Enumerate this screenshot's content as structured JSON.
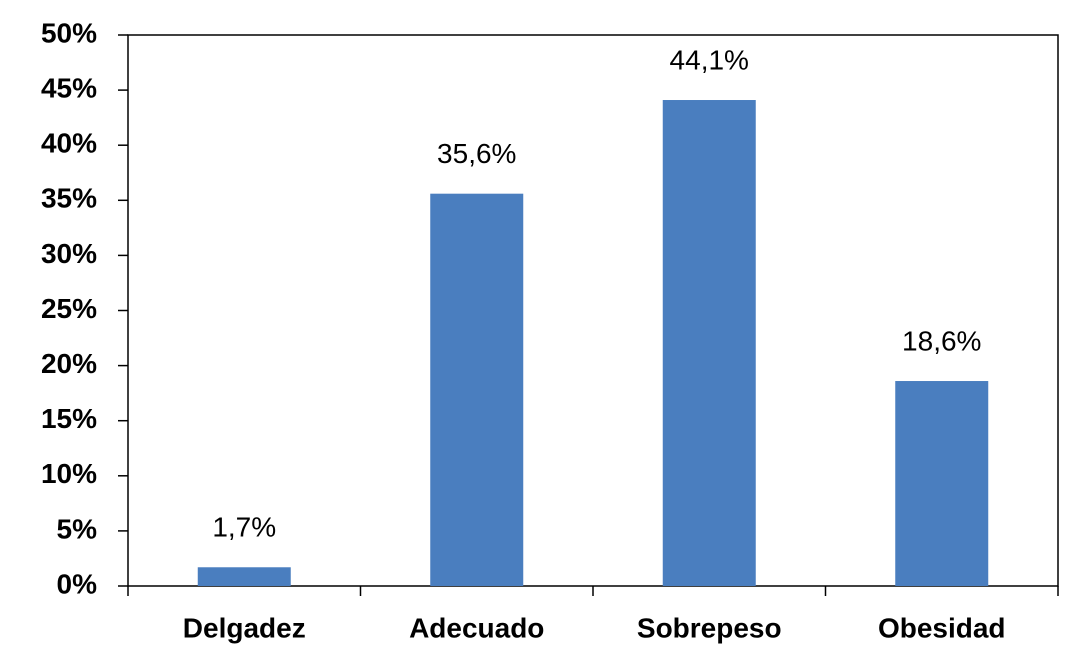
{
  "chart_data": {
    "type": "bar",
    "categories": [
      "Delgadez",
      "Adecuado",
      "Sobrepeso",
      "Obesidad"
    ],
    "values": [
      1.7,
      35.6,
      44.1,
      18.6
    ],
    "value_labels": [
      "1,7%",
      "35,6%",
      "44,1%",
      "18,6%"
    ],
    "color": "#4a7ebf",
    "ylim": [
      0,
      50
    ],
    "yticks": [
      {
        "value": 0,
        "label": "0%"
      },
      {
        "value": 5,
        "label": "5%"
      },
      {
        "value": 10,
        "label": "10%"
      },
      {
        "value": 15,
        "label": "15%"
      },
      {
        "value": 20,
        "label": "20%"
      },
      {
        "value": 25,
        "label": "25%"
      },
      {
        "value": 30,
        "label": "30%"
      },
      {
        "value": 35,
        "label": "35%"
      },
      {
        "value": 40,
        "label": "40%"
      },
      {
        "value": 45,
        "label": "45%"
      },
      {
        "value": 50,
        "label": "50%"
      }
    ],
    "grid": false
  }
}
